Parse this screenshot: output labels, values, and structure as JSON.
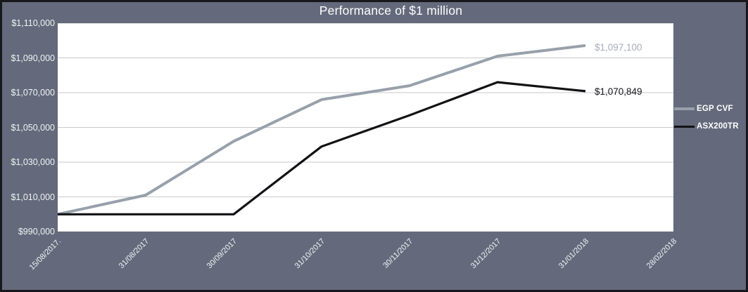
{
  "title": "Performance of $1 million",
  "colors": {
    "background": "#646a7b",
    "frame_border": "#17171c",
    "plot_background": "#ffffff",
    "gridline": "#c8cacc",
    "title_text": "#ffffff",
    "axis_text": "#f2f3f5"
  },
  "chart_data": {
    "type": "line",
    "title": "Performance of $1 million",
    "categories": [
      "15/08/2017.",
      "31/08/2017",
      "30/09/2017",
      "31/10/2017",
      "30/11/2017",
      "31/12/2017",
      "31/01/2018",
      "28/02/2018"
    ],
    "series": [
      {
        "name": "EGP CVF",
        "color": "#97a0ab",
        "end_label": "$1,097,100",
        "end_label_color": "#a6acb8",
        "values": [
          1000000,
          1011000,
          1042000,
          1066000,
          1074000,
          1091000,
          1097100,
          null
        ]
      },
      {
        "name": "ASX200TR",
        "color": "#121215",
        "end_label": "$1,070,849",
        "end_label_color": "#15151c",
        "values": [
          1000000,
          1000000,
          1000000,
          1039000,
          1057000,
          1076000,
          1070849,
          null
        ]
      }
    ],
    "ylim": [
      990000,
      1110000
    ],
    "y_step": 20000,
    "y_tick_labels": [
      "$1,110,000",
      "$1,090,000",
      "$1,070,000",
      "$1,050,000",
      "$1,030,000",
      "$1,010,000",
      "$990,000"
    ],
    "xlabel": "",
    "ylabel": "",
    "grid": "horizontal",
    "legend_position": "right"
  }
}
